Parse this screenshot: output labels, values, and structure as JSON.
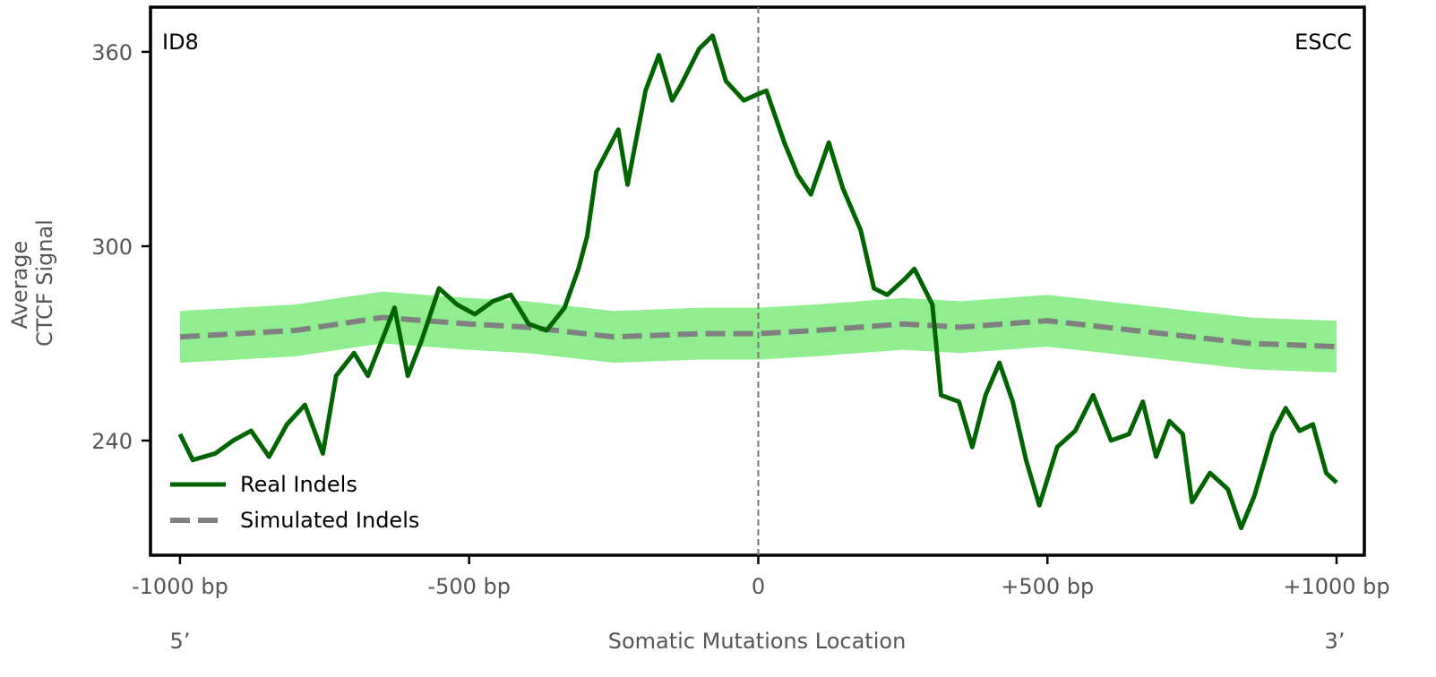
{
  "chart_data": {
    "type": "line",
    "title_left": "ID8",
    "title_right": "ESCC",
    "xlabel": "Somatic Mutations Location",
    "xlabel_left": "5’",
    "xlabel_right": "3’",
    "ylabel_line1": "Average",
    "ylabel_line2": "CTCF Signal",
    "xlim": [
      -1051,
      1048
    ],
    "ylim": [
      204.6,
      373.8
    ],
    "xticks": [
      {
        "value": -1000,
        "label": "-1000 bp"
      },
      {
        "value": -500,
        "label": "-500 bp"
      },
      {
        "value": 0,
        "label": "0"
      },
      {
        "value": 500,
        "label": "+500 bp"
      },
      {
        "value": 1000,
        "label": "+1000 bp"
      }
    ],
    "yticks": [
      {
        "value": 240,
        "label": "240"
      },
      {
        "value": 300,
        "label": "300"
      },
      {
        "value": 360,
        "label": "360"
      }
    ],
    "legend": {
      "placement": "lower-left",
      "entries": [
        "Real Indels",
        "Simulated Indels"
      ]
    },
    "colors": {
      "real": "#006400",
      "simulated": "#808080",
      "band": "#90ee90"
    },
    "series": [
      {
        "name": "Real Indels",
        "x": [
          -1000,
          -978,
          -939,
          -908,
          -877,
          -846,
          -815,
          -784,
          -753,
          -730,
          -699,
          -675,
          -644,
          -629,
          -606,
          -582,
          -552,
          -521,
          -490,
          -459,
          -428,
          -397,
          -366,
          -335,
          -311,
          -296,
          -280,
          -242,
          -226,
          -195,
          -172,
          -149,
          -133,
          -102,
          -79,
          -56,
          -25,
          0,
          14,
          45,
          68,
          91,
          122,
          146,
          177,
          200,
          223,
          254,
          270,
          301,
          316,
          347,
          370,
          393,
          417,
          440,
          463,
          486,
          517,
          548,
          579,
          610,
          641,
          665,
          688,
          711,
          734,
          750,
          781,
          812,
          835,
          858,
          889,
          912,
          936,
          959,
          982,
          1000
        ],
        "y": [
          242,
          234,
          236,
          240,
          243,
          235,
          245,
          251,
          236,
          260,
          267,
          260,
          274,
          281,
          260,
          271,
          287,
          282,
          279,
          283,
          285,
          276,
          274,
          281,
          293,
          303,
          323,
          336,
          319,
          348,
          359,
          345,
          350,
          361,
          365,
          351,
          345,
          347,
          348,
          332,
          322,
          316,
          332,
          318,
          305,
          287,
          285,
          290,
          293,
          282,
          254,
          252,
          238,
          254,
          264,
          252,
          234,
          220,
          238,
          243,
          254,
          240,
          242,
          252,
          235,
          246,
          242,
          221,
          230,
          225,
          213,
          223,
          242,
          250,
          243,
          245,
          230,
          227
        ]
      },
      {
        "name": "Simulated Indels",
        "x": [
          -1000,
          -900,
          -800,
          -650,
          -500,
          -400,
          -250,
          -100,
          0,
          100,
          250,
          350,
          500,
          650,
          750,
          850,
          1000
        ],
        "y": [
          272,
          273,
          274,
          278,
          276,
          275,
          272,
          273,
          273,
          274,
          276,
          275,
          277,
          274,
          272,
          270,
          269
        ],
        "band": 8
      }
    ]
  }
}
